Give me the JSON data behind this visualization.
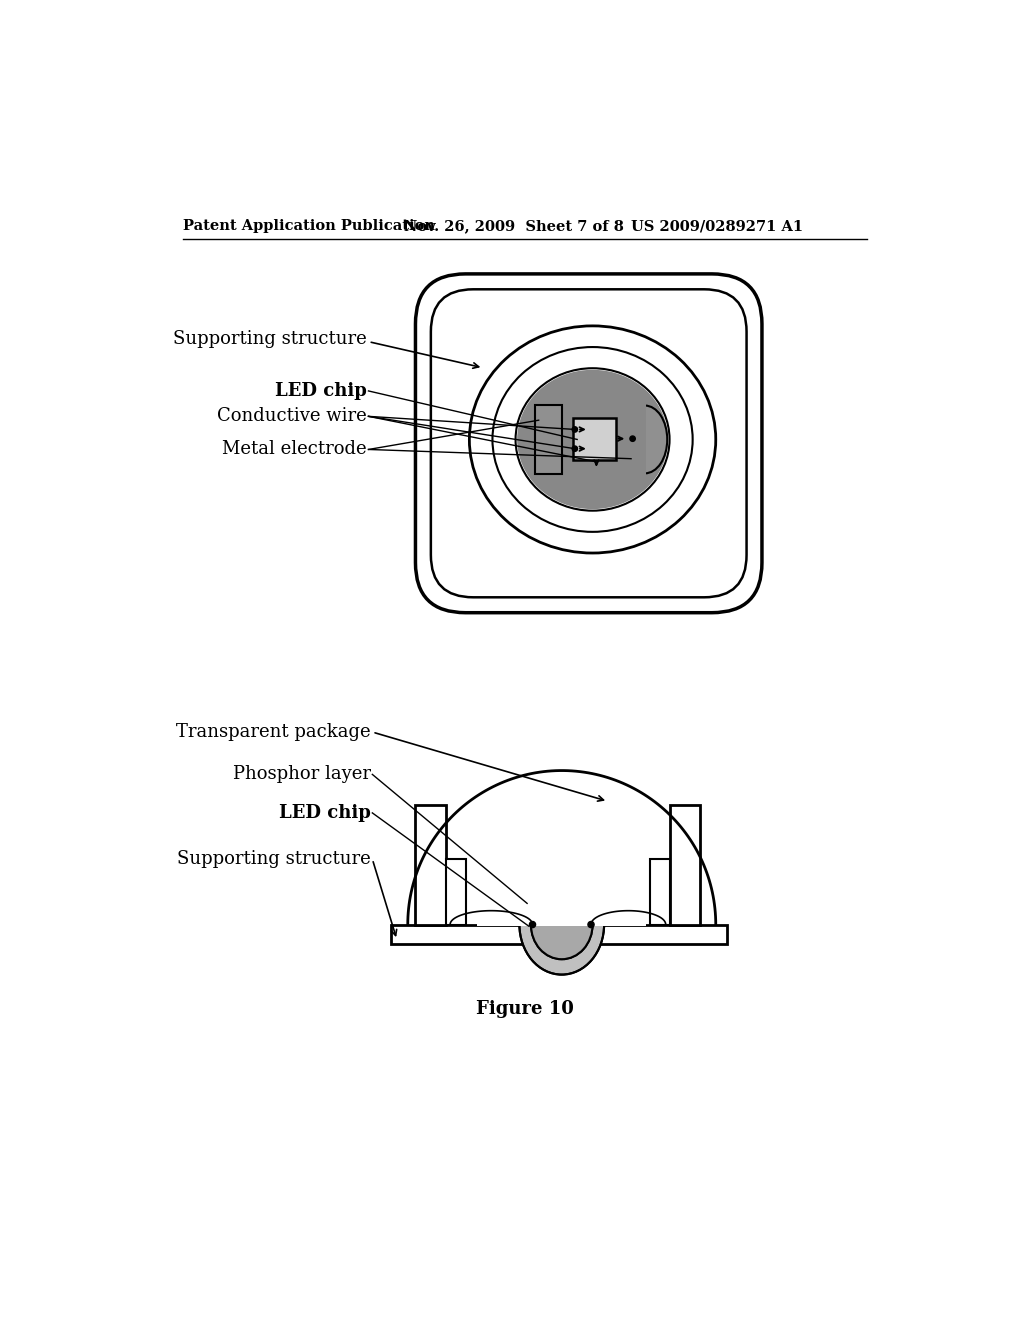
{
  "bg_color": "#ffffff",
  "header_left": "Patent Application Publication",
  "header_mid": "Nov. 26, 2009  Sheet 7 of 8",
  "header_right": "US 2009/0289271 A1",
  "figure_caption": "Figure 10",
  "gray_dark": "#888888",
  "gray_medium": "#aaaaaa",
  "gray_light": "#cccccc",
  "gray_chip": "#c8c8c8",
  "black": "#000000",
  "white": "#ffffff"
}
